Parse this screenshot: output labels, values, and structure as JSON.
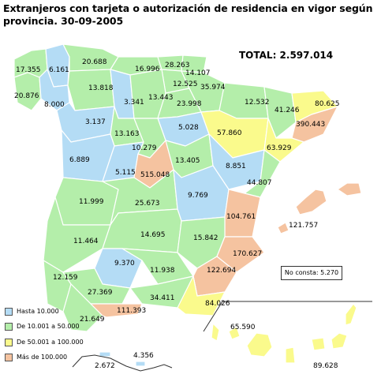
{
  "title": "Extranjeros con tarjeta o autorización de residencia en vigor según provincia. 30-09-2005",
  "total": "TOTAL: 2.597.014",
  "no_consta": "No consta: 5.270",
  "colors": {
    "hasta_10000": "#b4dcf5",
    "de_10001_50000": "#b4eeaa",
    "de_50001_100000": "#fafa8c",
    "mas_100000": "#f5c3a0",
    "border": "#ffffff",
    "frame": "#333333"
  },
  "legend": [
    {
      "label": "Hasta 10.000",
      "color": "#b4dcf5"
    },
    {
      "label": "De 10.001 a 50.000",
      "color": "#b4eeaa"
    },
    {
      "label": "De 50.001 a 100.000",
      "color": "#fafa8c"
    },
    {
      "label": "Más de 100.000",
      "color": "#f5c3a0"
    }
  ],
  "values": {
    "a_coruna": "17.355",
    "lugo": "6.161",
    "pontevedra": "20.876",
    "ourense": "8.000",
    "asturias": "20.688",
    "cantabria": "16.996",
    "bizkaia": "28.263",
    "gipuzkoa": "14.107",
    "alava": "12.525",
    "navarra": "35.974",
    "leon": "13.818",
    "palencia": "3.341",
    "burgos": "13.443",
    "la_rioja": "23.998",
    "huesca": "12.532",
    "lleida": "41.246",
    "girona": "80.625",
    "barcelona": "390.443",
    "zamora": "3.137",
    "valladolid": "13.163",
    "soria": "5.028",
    "zaragoza": "57.860",
    "tarragona": "63.929",
    "salamanca": "6.889",
    "segovia": "10.279",
    "avila": "5.115",
    "madrid": "515.048",
    "guadalajara": "13.405",
    "teruel": "8.851",
    "castellon": "44.807",
    "caceres": "11.999",
    "toledo": "25.673",
    "cuenca": "9.769",
    "valencia": "104.761",
    "baleares": "121.757",
    "badajoz": "11.464",
    "ciudad_real": "14.695",
    "albacete": "15.842",
    "alicante": "170.627",
    "huelva": "12.159",
    "cordoba": "9.370",
    "jaen": "11.938",
    "murcia": "122.694",
    "sevilla": "27.369",
    "granada": "34.411",
    "almeria": "84.026",
    "cadiz": "21.649",
    "malaga": "111.393",
    "las_palmas": "65.590",
    "santa_cruz_tenerife": "89.628",
    "ceuta": "2.672",
    "melilla": "4.356"
  }
}
